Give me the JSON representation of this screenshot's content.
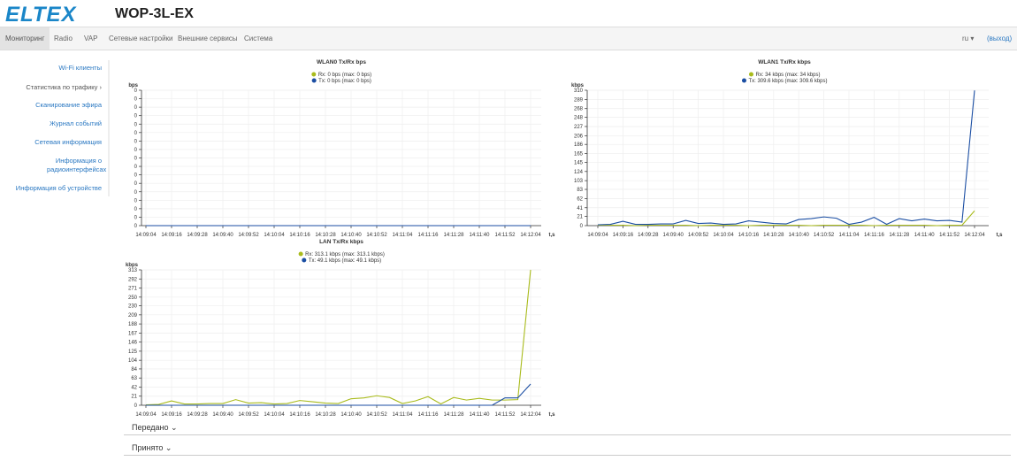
{
  "header": {
    "logo": "ELTEX",
    "title": "WOP-3L-EX"
  },
  "nav": {
    "tabs": [
      "Мониторинг",
      "Radio",
      "VAP",
      "Сетевые настройки",
      "Внешние сервисы",
      "Система"
    ],
    "lang": "ru",
    "logout": "(выход)"
  },
  "sidebar": [
    "Wi-Fi клиенты",
    "Статистика по трафику ›",
    "Сканирование эфира",
    "Журнал событий",
    "Сетевая информация",
    "Информация о радиоинтерфейсах",
    "Информация об устройстве"
  ],
  "chart_data": [
    {
      "type": "line",
      "title": "WLAN0 Tx/Rx bps",
      "ylabel": "bps",
      "xlabel": "t,s",
      "grid": true,
      "categories": [
        "14:09:04",
        null,
        "14:09:16",
        null,
        "14:09:28",
        null,
        "14:09:40",
        null,
        "14:09:52",
        null,
        "14:10:04",
        null,
        "14:10:16",
        null,
        "14:10:28",
        null,
        "14:10:40",
        null,
        "14:10:52",
        null,
        "14:11:04",
        null,
        "14:11:16",
        null,
        "14:11:28",
        null,
        "14:11:40",
        null,
        "14:11:52",
        null,
        "14:12:04"
      ],
      "series": [
        {
          "name": "Rx: 0 bps (max: 0 bps)",
          "color": "#a9bb1c",
          "values": [
            0,
            0,
            0,
            0,
            0,
            0,
            0,
            0,
            0,
            0,
            0,
            0,
            0,
            0,
            0,
            0,
            0,
            0,
            0,
            0,
            0,
            0,
            0,
            0,
            0,
            0,
            0,
            0,
            0,
            0,
            0
          ]
        },
        {
          "name": "Tx: 0 bps (max: 0 bps)",
          "color": "#1b4ea3",
          "values": [
            0,
            0,
            0,
            0,
            0,
            0,
            0,
            0,
            0,
            0,
            0,
            0,
            0,
            0,
            0,
            0,
            0,
            0,
            0,
            0,
            0,
            0,
            0,
            0,
            0,
            0,
            0,
            0,
            0,
            0,
            0
          ]
        }
      ],
      "ylim": [
        0,
        16
      ],
      "yticks": [
        0,
        {
          "value": 1,
          "label": "0"
        },
        {
          "value": 2,
          "label": "0"
        },
        {
          "value": 3,
          "label": "0"
        },
        {
          "value": 4,
          "label": "0"
        },
        {
          "value": 5,
          "label": "0"
        },
        {
          "value": 6,
          "label": "0"
        },
        {
          "value": 7,
          "label": "0"
        },
        {
          "value": 8,
          "label": "0"
        },
        {
          "value": 9,
          "label": "0"
        },
        {
          "value": 10,
          "label": "0"
        },
        {
          "value": 11,
          "label": "0"
        },
        {
          "value": 12,
          "label": "0"
        },
        {
          "value": 13,
          "label": "0"
        },
        {
          "value": 14,
          "label": "0"
        },
        {
          "value": 15,
          "label": "0"
        },
        {
          "value": 16,
          "label": "0"
        }
      ]
    },
    {
      "type": "line",
      "title": "WLAN1 Tx/Rx kbps",
      "ylabel": "kbps",
      "xlabel": "t,s",
      "grid": true,
      "categories": [
        "14:09:04",
        null,
        "14:09:16",
        null,
        "14:09:28",
        null,
        "14:09:40",
        null,
        "14:09:52",
        null,
        "14:10:04",
        null,
        "14:10:16",
        null,
        "14:10:28",
        null,
        "14:10:40",
        null,
        "14:10:52",
        null,
        "14:11:04",
        null,
        "14:11:16",
        null,
        "14:11:28",
        null,
        "14:11:40",
        null,
        "14:11:52",
        null,
        "14:12:04"
      ],
      "series": [
        {
          "name": "Rx: 34 kbps (max: 34 kbps)",
          "color": "#a9bb1c",
          "values": [
            1,
            1,
            1,
            0,
            1,
            1,
            1,
            1,
            0,
            1,
            1,
            1,
            0,
            1,
            1,
            1,
            1,
            0,
            1,
            1,
            1,
            1,
            0,
            1,
            1,
            1,
            1,
            0,
            1,
            1,
            34
          ]
        },
        {
          "name": "Tx: 309.6 kbps (max: 309.6 kbps)",
          "color": "#1b4ea3",
          "values": [
            2,
            3,
            10,
            3,
            3,
            4,
            4,
            12,
            5,
            6,
            3,
            4,
            11,
            8,
            5,
            4,
            14,
            16,
            20,
            17,
            3,
            8,
            19,
            3,
            16,
            11,
            15,
            11,
            12,
            8,
            309.6
          ]
        }
      ],
      "ylim": [
        0,
        310
      ],
      "yticks": [
        0,
        21,
        41,
        62,
        83,
        103,
        124,
        145,
        165,
        186,
        206,
        227,
        248,
        268,
        289,
        310
      ]
    },
    {
      "type": "line",
      "title": "LAN Tx/Rx kbps",
      "ylabel": "kbps",
      "xlabel": "t,s",
      "grid": true,
      "categories": [
        "14:09:04",
        null,
        "14:09:16",
        null,
        "14:09:28",
        null,
        "14:09:40",
        null,
        "14:09:52",
        null,
        "14:10:04",
        null,
        "14:10:16",
        null,
        "14:10:28",
        null,
        "14:10:40",
        null,
        "14:10:52",
        null,
        "14:11:04",
        null,
        "14:11:16",
        null,
        "14:11:28",
        null,
        "14:11:40",
        null,
        "14:11:52",
        null,
        "14:12:04"
      ],
      "series": [
        {
          "name": "Rx: 313.1 kbps (max: 313.1 kbps)",
          "color": "#a9bb1c",
          "values": [
            1,
            2,
            10,
            3,
            3,
            4,
            4,
            13,
            5,
            6,
            3,
            4,
            11,
            8,
            5,
            4,
            15,
            17,
            22,
            18,
            4,
            10,
            20,
            3,
            18,
            12,
            16,
            12,
            12,
            13,
            313.1
          ]
        },
        {
          "name": "Tx: 49.1 kbps (max: 49.1 kbps)",
          "color": "#1b4ea3",
          "values": [
            0,
            0,
            0,
            0,
            0,
            0,
            0,
            0,
            0,
            0,
            0,
            0,
            0,
            0,
            0,
            0,
            0,
            0,
            0,
            0,
            0,
            0,
            0,
            0,
            0,
            0,
            0,
            0,
            17,
            17,
            49.1
          ]
        }
      ],
      "ylim": [
        0,
        313
      ],
      "yticks": [
        0,
        21,
        42,
        63,
        84,
        104,
        125,
        146,
        167,
        188,
        209,
        230,
        250,
        271,
        292,
        313
      ]
    }
  ],
  "sections": [
    "Передано",
    "Принято"
  ]
}
